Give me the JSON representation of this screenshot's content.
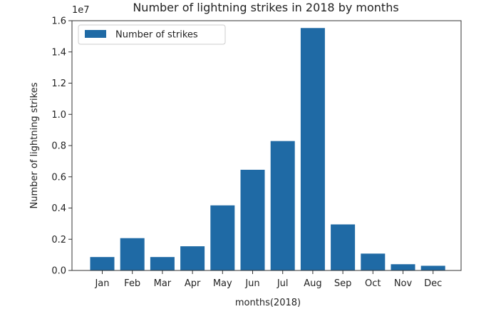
{
  "chart_data": {
    "type": "bar",
    "title": "Number of lightning strikes in 2018 by months",
    "xlabel": "months(2018)",
    "ylabel": "Number of lightning strikes",
    "scale_label": "1e7",
    "categories": [
      "Jan",
      "Feb",
      "Mar",
      "Apr",
      "May",
      "Jun",
      "Jul",
      "Aug",
      "Sep",
      "Oct",
      "Nov",
      "Dec"
    ],
    "series": [
      {
        "name": "Number of strikes",
        "color": "#1f6aa5",
        "values": [
          860000,
          2070000,
          860000,
          1550000,
          4170000,
          6450000,
          8290000,
          15530000,
          2950000,
          1080000,
          400000,
          300000
        ]
      }
    ],
    "ylim": [
      0,
      1.6
    ],
    "yticks": [
      "0.0",
      "0.2",
      "0.4",
      "0.6",
      "0.8",
      "1.0",
      "1.2",
      "1.4",
      "1.6"
    ],
    "ytick_values": [
      0,
      0.2,
      0.4,
      0.6,
      0.8,
      1.0,
      1.2,
      1.4,
      1.6
    ],
    "value_scale": 10000000,
    "legend_position": "upper-left",
    "grid": false
  }
}
